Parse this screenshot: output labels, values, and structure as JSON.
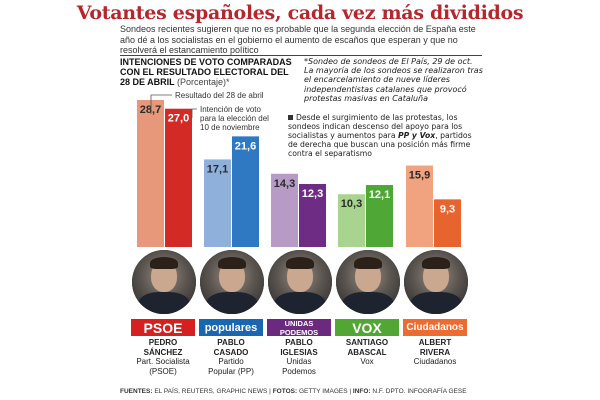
{
  "header": {
    "title": "Votantes españoles, cada vez más divididos",
    "intro": "Sondeos recientes sugieren que no es probable que la segunda elección de España este año dé a los socialistas en el gobierno el aumento de escaños que esperan y que no resolverá el estancamiento político"
  },
  "chart_heading": {
    "title": "INTENCIONES DE VOTO COMPARADAS CON EL RESULTADO ELECTORAL DEL 28 DE ABRIL",
    "unit": "(Porcentaje)*"
  },
  "note": "*Sondeo de sondeos de El País, 29 de oct. La mayoría de los sondeos se realizaron tras el encarcelamiento de nueve líderes independentistas catalanes que provocó protestas masivas en Cataluña",
  "bullet": {
    "text_before": "Desde el surgimiento de las protestas, los sondeos indican descenso del apoyo para los socialistas y aumentos para ",
    "highlight": "PP y Vox",
    "text_after": ", partidos de derecha que buscan una posición más firme contra el separatismo"
  },
  "chart_data": {
    "type": "bar",
    "title": "INTENCIONES DE VOTO COMPARADAS CON EL RESULTADO ELECTORAL DEL 28 DE ABRIL",
    "ylabel": "(Porcentaje)*",
    "categories": [
      "PSOE",
      "Populares",
      "Unidas Podemos",
      "Vox",
      "Ciudadanos"
    ],
    "series": [
      {
        "name": "Resultado del 28 de abril",
        "values": [
          28.7,
          17.1,
          14.3,
          10.3,
          15.9
        ]
      },
      {
        "name": "Intención de voto para la elección del 10 de noviembre",
        "values": [
          27.0,
          21.6,
          12.3,
          12.1,
          9.3
        ]
      }
    ],
    "value_labels": [
      [
        "28,7",
        "27,0"
      ],
      [
        "17,1",
        "21,6"
      ],
      [
        "14,3",
        "12,3"
      ],
      [
        "10,3",
        "12,1"
      ],
      [
        "15,9",
        "9,3"
      ]
    ],
    "annotations": [
      "Resultado del 28 de abril",
      "Intención de voto para la elección del 10 de noviembre"
    ],
    "colors": [
      [
        "#e8987a",
        "#d42a26"
      ],
      [
        "#8fb0da",
        "#2f79c2"
      ],
      [
        "#b79ac6",
        "#6f2c84"
      ],
      [
        "#a9d48f",
        "#4fa835"
      ],
      [
        "#f0a37e",
        "#e8642f"
      ]
    ],
    "ylim": [
      0,
      30
    ],
    "grid": false
  },
  "parties": [
    {
      "logo": "PSOE",
      "logo_bg": "#d6201f",
      "logo_style": "psoe",
      "name1": "PEDRO",
      "name2": "SÁNCHEZ",
      "party1": "Part. Socialista",
      "party2": "(PSOE)"
    },
    {
      "logo": "populares",
      "logo_bg": "#1a67b1",
      "logo_style": "pp",
      "name1": "PABLO",
      "name2": "CASADO",
      "party1": "Partido",
      "party2": "Popular (PP)"
    },
    {
      "logo": "UNIDAS PODEMOS",
      "logo_bg": "#6b2a80",
      "logo_style": "up",
      "name1": "PABLO",
      "name2": "IGLESIAS",
      "party1": "Unidas",
      "party2": "Podemos"
    },
    {
      "logo": "VOX",
      "logo_bg": "#52a634",
      "logo_style": "vox",
      "name1": "SANTIAGO",
      "name2": "ABASCAL",
      "party1": "Vox",
      "party2": ""
    },
    {
      "logo": "Ciudadanos",
      "logo_bg": "#ec6b30",
      "logo_style": "cs",
      "name1": "ALBERT",
      "name2": "RIVERA",
      "party1": "Ciudadanos",
      "party2": ""
    }
  ],
  "footer": {
    "sources_label": "FUENTES:",
    "sources": "EL PAÍS, REUTERS, GRAPHIC NEWS",
    "photos_label": "FOTOS:",
    "photos": "GETTY IMAGES",
    "info_label": "INFO:",
    "info": "N.F. DPTO. INFOGRAFÍA GESE"
  }
}
